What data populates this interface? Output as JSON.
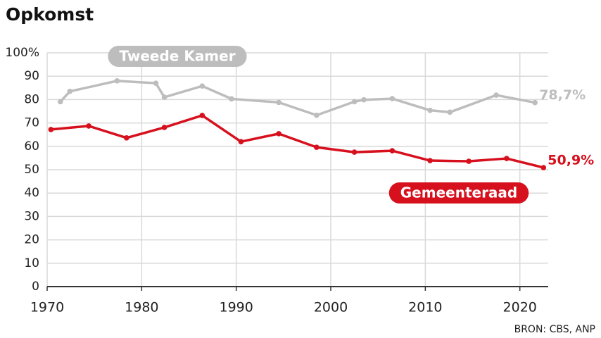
{
  "chart_data": {
    "type": "line",
    "title": "Opkomst",
    "source": "BRON: CBS, ANP",
    "xlim": [
      1970,
      2023
    ],
    "xticks": [
      1970,
      1980,
      1990,
      2000,
      2010,
      2020
    ],
    "ylim": [
      0,
      100
    ],
    "yticks": [
      0,
      10,
      20,
      30,
      40,
      50,
      60,
      70,
      80,
      90,
      {
        "value": 100,
        "label": "100%"
      }
    ],
    "grid": true,
    "series": [
      {
        "name": "Tweede Kamer",
        "color": "#bdbdbd",
        "x": [
          1971.4,
          1972.4,
          1977.4,
          1981.5,
          1982.4,
          1986.4,
          1989.5,
          1994.5,
          1998.5,
          2002.5,
          2003.5,
          2006.5,
          2010.5,
          2012.6,
          2017.5,
          2021.6
        ],
        "values": [
          79.1,
          83.5,
          88,
          87,
          81,
          85.8,
          80.3,
          78.8,
          73.3,
          79.1,
          79.9,
          80.4,
          75.4,
          74.6,
          81.9,
          78.7
        ],
        "value_labels": [
          null,
          null,
          null,
          null,
          null,
          null,
          null,
          null,
          null,
          null,
          null,
          null,
          null,
          null,
          null,
          "78,7%"
        ]
      },
      {
        "name": "Gemeenteraad",
        "color": "#d7101e",
        "x": [
          1970.4,
          1974.4,
          1978.4,
          1982.4,
          1986.4,
          1990.5,
          1994.5,
          1998.5,
          2002.5,
          2006.5,
          2010.5,
          2014.6,
          2018.6,
          2022.5
        ],
        "values": [
          67.2,
          68.7,
          63.6,
          68.1,
          73.2,
          62,
          65.4,
          59.6,
          57.5,
          58.1,
          53.9,
          53.6,
          54.8,
          50.9
        ],
        "value_labels": [
          null,
          null,
          null,
          null,
          null,
          null,
          null,
          null,
          null,
          null,
          null,
          null,
          null,
          "50,9%"
        ]
      }
    ]
  }
}
